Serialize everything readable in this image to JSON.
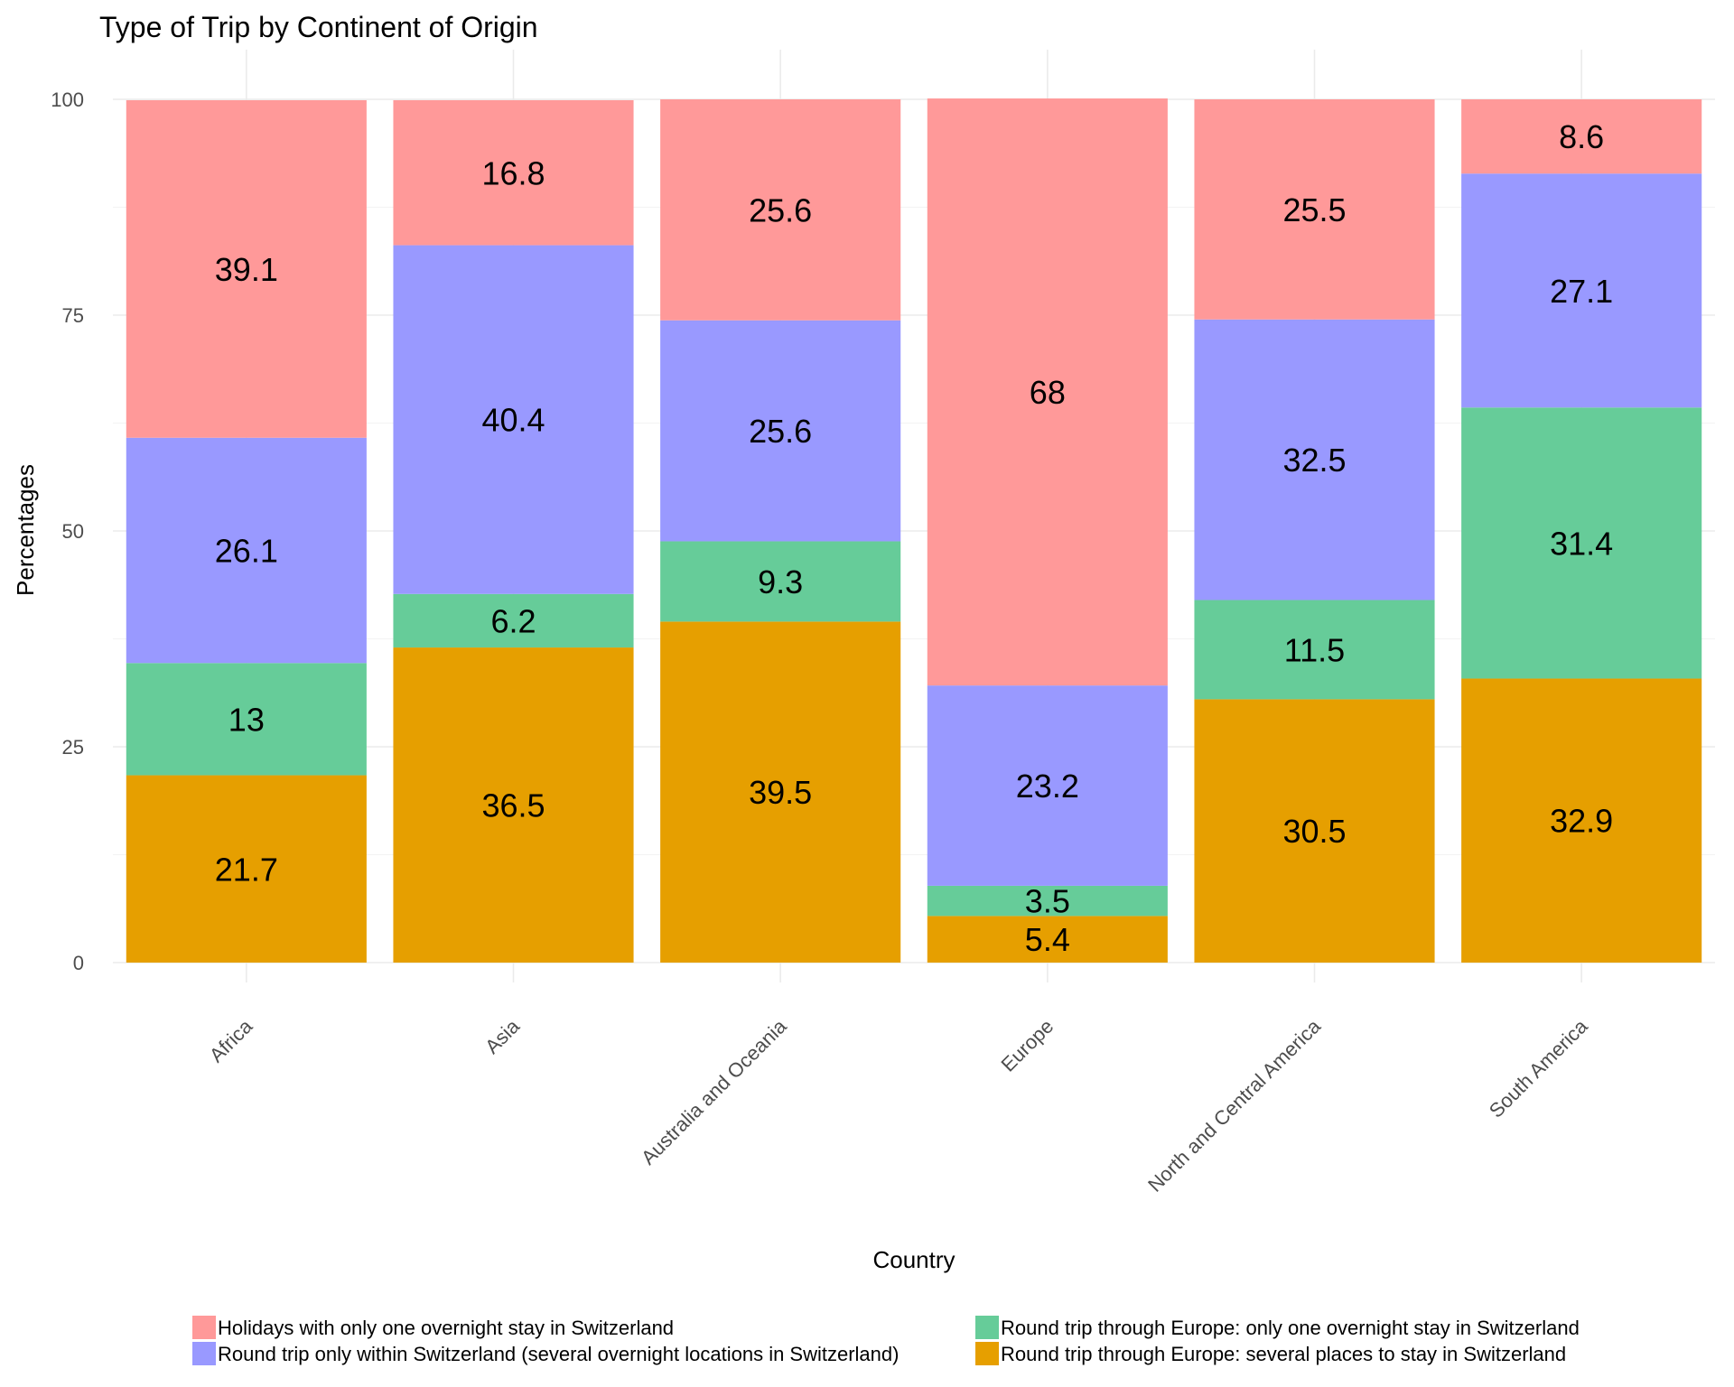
{
  "chart_data": {
    "type": "bar",
    "stacked": true,
    "title": "Type of Trip by Continent of Origin",
    "xlabel": "Country",
    "ylabel": "Percentages",
    "ylim": [
      0,
      100
    ],
    "yticks": [
      0,
      25,
      50,
      75,
      100
    ],
    "grid": true,
    "legend_position": "bottom",
    "categories": [
      "Africa",
      "Asia",
      "Australia and Oceania",
      "Europe",
      "North and Central America",
      "South America"
    ],
    "series": [
      {
        "name": "Round trip through Europe: several places to stay in Switzerland",
        "color": "#E69F00",
        "values": [
          21.7,
          36.5,
          39.5,
          5.4,
          30.5,
          32.9
        ]
      },
      {
        "name": "Round trip through Europe: only one overnight stay in Switzerland",
        "color": "#66CC99",
        "values": [
          13,
          6.2,
          9.3,
          3.5,
          11.5,
          31.4
        ]
      },
      {
        "name": "Round trip only within Switzerland (several overnight locations in Switzerland)",
        "color": "#9999FF",
        "values": [
          26.1,
          40.4,
          25.6,
          23.2,
          32.5,
          27.1
        ]
      },
      {
        "name": "Holidays with only one overnight stay in Switzerland",
        "color": "#FF9999",
        "values": [
          39.1,
          16.8,
          25.6,
          68,
          25.5,
          8.6
        ]
      }
    ],
    "legend_order": [
      3,
      1,
      2,
      0
    ]
  }
}
